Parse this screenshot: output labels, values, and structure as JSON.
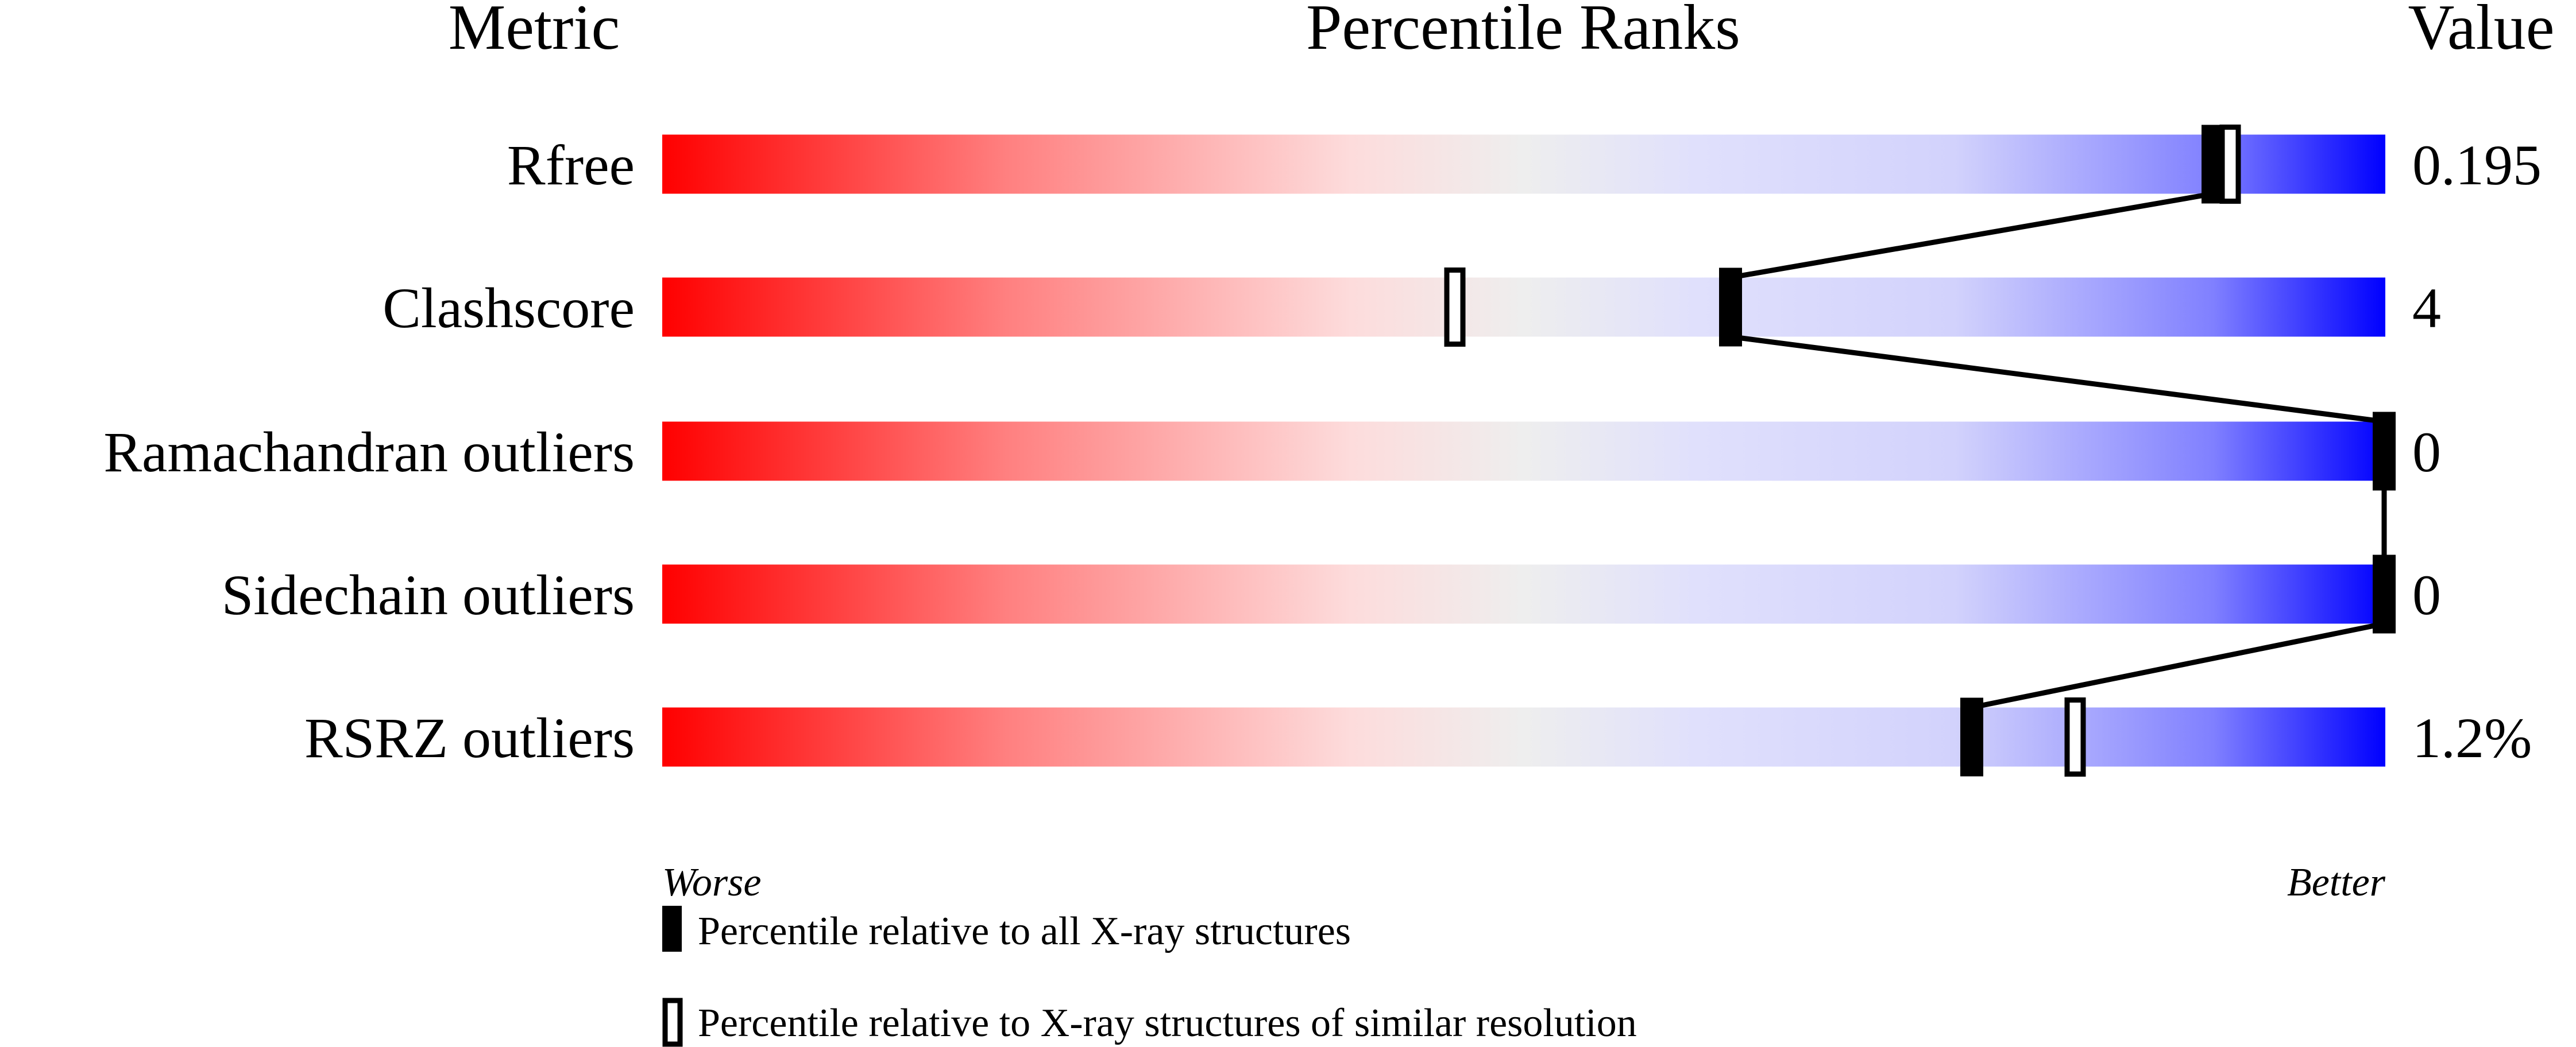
{
  "chart_data": {
    "type": "percentile-slider",
    "headers": {
      "metric": "Metric",
      "ranks": "Percentile Ranks",
      "value": "Value"
    },
    "xlim": [
      0,
      100
    ],
    "rows": [
      {
        "metric": "Rfree",
        "value": "0.195",
        "percentile_all": 90,
        "percentile_similar": 91
      },
      {
        "metric": "Clashscore",
        "value": "4",
        "percentile_all": 62,
        "percentile_similar": 46
      },
      {
        "metric": "Ramachandran outliers",
        "value": "0",
        "percentile_all": 100,
        "percentile_similar": null
      },
      {
        "metric": "Sidechain outliers",
        "value": "0",
        "percentile_all": 100,
        "percentile_similar": null
      },
      {
        "metric": "RSRZ outliers",
        "value": "1.2%",
        "percentile_all": 76,
        "percentile_similar": 82
      }
    ],
    "axis_left_label": "Worse",
    "axis_right_label": "Better",
    "legend": [
      {
        "marker": "filled",
        "label": "Percentile relative to all X-ray structures"
      },
      {
        "marker": "open",
        "label": "Percentile relative to X-ray structures of similar resolution"
      }
    ],
    "colors": {
      "worse": "#ff0000",
      "middle": "#eeeeee",
      "better": "#0000ff",
      "marker": "#000000"
    }
  }
}
